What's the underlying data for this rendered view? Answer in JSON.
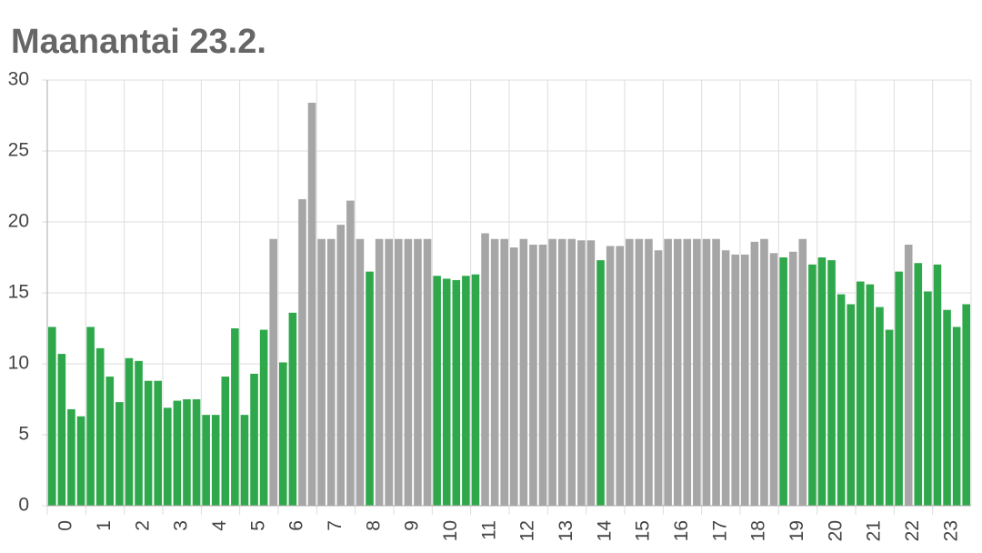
{
  "chart_data": {
    "type": "bar",
    "title": "Maanantai 23.2.",
    "xticks": [
      0,
      1,
      2,
      3,
      4,
      5,
      6,
      7,
      8,
      9,
      10,
      11,
      12,
      13,
      14,
      15,
      16,
      17,
      18,
      19,
      20,
      21,
      22,
      23
    ],
    "values": [
      12.6,
      10.7,
      6.8,
      6.3,
      12.6,
      11.1,
      9.1,
      7.3,
      10.4,
      10.2,
      8.8,
      8.8,
      6.9,
      7.4,
      7.5,
      7.5,
      6.4,
      6.4,
      9.1,
      12.5,
      6.4,
      9.3,
      12.4,
      18.8,
      10.1,
      13.6,
      21.6,
      28.4,
      18.8,
      18.8,
      19.8,
      21.5,
      18.8,
      16.5,
      18.8,
      18.8,
      18.8,
      18.8,
      18.8,
      18.8,
      16.2,
      16.0,
      15.9,
      16.2,
      16.3,
      19.2,
      18.8,
      18.8,
      18.2,
      18.8,
      18.4,
      18.4,
      18.8,
      18.8,
      18.8,
      18.7,
      18.7,
      17.3,
      18.3,
      18.3,
      18.8,
      18.8,
      18.8,
      18.0,
      18.8,
      18.8,
      18.8,
      18.8,
      18.8,
      18.8,
      18.0,
      17.7,
      17.7,
      18.6,
      18.8,
      17.8,
      17.5,
      17.9,
      18.8,
      17.0,
      17.5,
      17.3,
      14.9,
      14.2,
      15.8,
      15.6,
      14.0,
      12.4,
      16.5,
      18.4,
      17.1,
      15.1,
      17.0,
      13.8,
      12.6,
      14.2
    ],
    "colors": [
      "#2ea84a",
      "#2ea84a",
      "#2ea84a",
      "#2ea84a",
      "#2ea84a",
      "#2ea84a",
      "#2ea84a",
      "#2ea84a",
      "#2ea84a",
      "#2ea84a",
      "#2ea84a",
      "#2ea84a",
      "#2ea84a",
      "#2ea84a",
      "#2ea84a",
      "#2ea84a",
      "#2ea84a",
      "#2ea84a",
      "#2ea84a",
      "#2ea84a",
      "#2ea84a",
      "#2ea84a",
      "#2ea84a",
      "#a6a6a6",
      "#2ea84a",
      "#2ea84a",
      "#a6a6a6",
      "#a6a6a6",
      "#a6a6a6",
      "#a6a6a6",
      "#a6a6a6",
      "#a6a6a6",
      "#a6a6a6",
      "#2ea84a",
      "#a6a6a6",
      "#a6a6a6",
      "#a6a6a6",
      "#a6a6a6",
      "#a6a6a6",
      "#a6a6a6",
      "#2ea84a",
      "#2ea84a",
      "#2ea84a",
      "#2ea84a",
      "#2ea84a",
      "#a6a6a6",
      "#a6a6a6",
      "#a6a6a6",
      "#a6a6a6",
      "#a6a6a6",
      "#a6a6a6",
      "#a6a6a6",
      "#a6a6a6",
      "#a6a6a6",
      "#a6a6a6",
      "#a6a6a6",
      "#a6a6a6",
      "#2ea84a",
      "#a6a6a6",
      "#a6a6a6",
      "#a6a6a6",
      "#a6a6a6",
      "#a6a6a6",
      "#a6a6a6",
      "#a6a6a6",
      "#a6a6a6",
      "#a6a6a6",
      "#a6a6a6",
      "#a6a6a6",
      "#a6a6a6",
      "#a6a6a6",
      "#a6a6a6",
      "#a6a6a6",
      "#a6a6a6",
      "#a6a6a6",
      "#a6a6a6",
      "#2ea84a",
      "#a6a6a6",
      "#a6a6a6",
      "#2ea84a",
      "#2ea84a",
      "#2ea84a",
      "#2ea84a",
      "#2ea84a",
      "#2ea84a",
      "#2ea84a",
      "#2ea84a",
      "#2ea84a",
      "#2ea84a",
      "#a6a6a6",
      "#2ea84a",
      "#2ea84a",
      "#2ea84a",
      "#2ea84a",
      "#2ea84a",
      "#2ea84a"
    ],
    "ylim": [
      0,
      30
    ],
    "yticks": [
      0,
      5,
      10,
      15,
      20,
      25,
      30
    ],
    "grid": true
  }
}
